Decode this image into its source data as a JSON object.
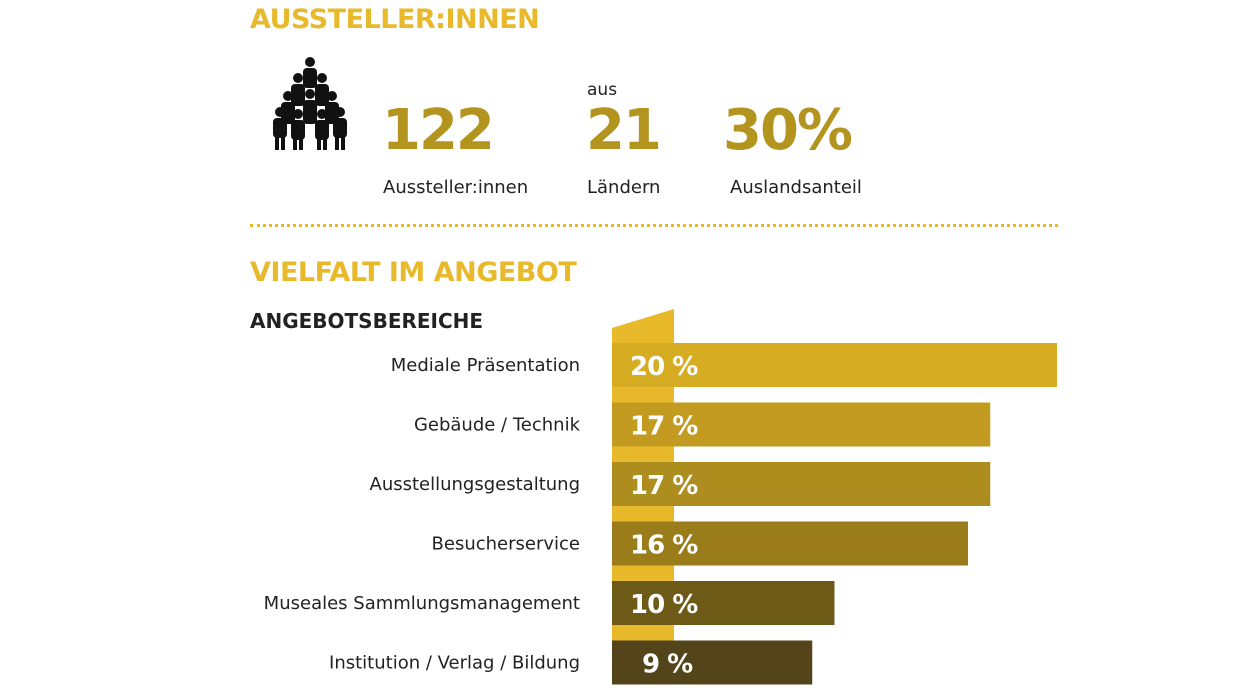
{
  "colors": {
    "accent": "#e8b92a",
    "number": "#b3941f",
    "bars": [
      "#d6ac22",
      "#c29b20",
      "#ad8d1e",
      "#9a7c1a",
      "#6e5a17",
      "#534419"
    ]
  },
  "exhibitors": {
    "title": "AUSSTELLER:INNEN",
    "icon": "people-group-icon",
    "stats": [
      {
        "value": "122",
        "label": "Aussteller:innen"
      },
      {
        "prefix": "aus",
        "value": "21",
        "label": "Ländern"
      },
      {
        "value": "30%",
        "label": "Auslandsanteil"
      }
    ]
  },
  "offer": {
    "title": "VIELFALT IM ANGEBOT",
    "subtitle": "ANGEBOTSBEREICHE"
  },
  "chart_data": {
    "type": "bar",
    "orientation": "horizontal",
    "title": "ANGEBOTSBEREICHE",
    "categories": [
      "Mediale Präsentation",
      "Gebäude / Technik",
      "Ausstellungsgestaltung",
      "Besucherservice",
      "Museales Sammlungsmanagement",
      "Institution / Verlag / Bildung"
    ],
    "values": [
      20,
      17,
      17,
      16,
      10,
      9
    ],
    "value_labels": [
      "20 %",
      "17 %",
      "17 %",
      "16 %",
      "10 %",
      "9 %"
    ],
    "unit": "%",
    "xlim": [
      0,
      20
    ]
  }
}
